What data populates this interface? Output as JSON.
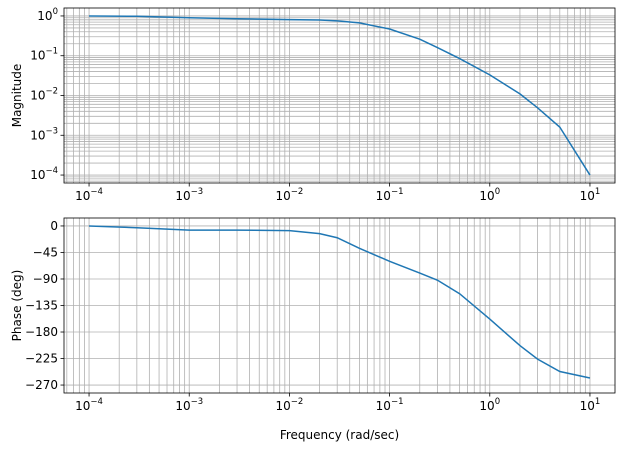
{
  "colors": {
    "series": "#1f77b4",
    "grid": "#b0b0b0"
  },
  "chart_data": [
    {
      "type": "line",
      "xscale": "log",
      "yscale": "log",
      "xlim": [
        0.0001,
        10
      ],
      "ylim": [
        0.0001,
        1
      ],
      "xlabel": "",
      "ylabel": "Magnitude",
      "grid": "major and minor",
      "xticks": [
        {
          "value": 0.0001,
          "base": "10",
          "exp": "−4"
        },
        {
          "value": 0.001,
          "base": "10",
          "exp": "−3"
        },
        {
          "value": 0.01,
          "base": "10",
          "exp": "−2"
        },
        {
          "value": 0.1,
          "base": "10",
          "exp": "−1"
        },
        {
          "value": 1,
          "base": "10",
          "exp": "0"
        },
        {
          "value": 10,
          "base": "10",
          "exp": "1"
        }
      ],
      "yticks": [
        {
          "value": 0.0001,
          "base": "10",
          "exp": "−4"
        },
        {
          "value": 0.001,
          "base": "10",
          "exp": "−3"
        },
        {
          "value": 0.01,
          "base": "10",
          "exp": "−2"
        },
        {
          "value": 0.1,
          "base": "10",
          "exp": "−1"
        },
        {
          "value": 1,
          "base": "10",
          "exp": "0"
        }
      ],
      "series": [
        {
          "x": [
            0.0001,
            0.0003,
            0.001,
            0.003,
            0.01,
            0.02,
            0.03,
            0.05,
            0.1,
            0.2,
            0.3,
            0.5,
            1,
            2,
            3,
            5,
            10
          ],
          "y": [
            1.0,
            0.98,
            0.9,
            0.85,
            0.81,
            0.79,
            0.75,
            0.67,
            0.47,
            0.26,
            0.16,
            0.085,
            0.033,
            0.011,
            0.0049,
            0.0016,
            0.0001
          ]
        }
      ]
    },
    {
      "type": "line",
      "xscale": "log",
      "yscale": "linear",
      "xlim": [
        0.0001,
        10
      ],
      "ylim": [
        -270,
        0
      ],
      "xlabel": "Frequency (rad/sec)",
      "ylabel": "Phase (deg)",
      "grid": "major and minor",
      "xticks": [
        {
          "value": 0.0001,
          "base": "10",
          "exp": "−4"
        },
        {
          "value": 0.001,
          "base": "10",
          "exp": "−3"
        },
        {
          "value": 0.01,
          "base": "10",
          "exp": "−2"
        },
        {
          "value": 0.1,
          "base": "10",
          "exp": "−1"
        },
        {
          "value": 1,
          "base": "10",
          "exp": "0"
        },
        {
          "value": 10,
          "base": "10",
          "exp": "1"
        }
      ],
      "yticks": [
        {
          "value": 0,
          "label": "0"
        },
        {
          "value": -45,
          "label": "−45"
        },
        {
          "value": -90,
          "label": "−90"
        },
        {
          "value": -135,
          "label": "−135"
        },
        {
          "value": -180,
          "label": "−180"
        },
        {
          "value": -225,
          "label": "−225"
        },
        {
          "value": -270,
          "label": "−270"
        }
      ],
      "series": [
        {
          "x": [
            0.0001,
            0.0003,
            0.001,
            0.003,
            0.01,
            0.02,
            0.03,
            0.05,
            0.1,
            0.2,
            0.3,
            0.5,
            1,
            2,
            3,
            5,
            10
          ],
          "y": [
            0,
            -3,
            -7,
            -7,
            -8,
            -13,
            -20,
            -38,
            -60,
            -80,
            -92,
            -115,
            -158,
            -203,
            -226,
            -247,
            -258
          ]
        }
      ]
    }
  ]
}
